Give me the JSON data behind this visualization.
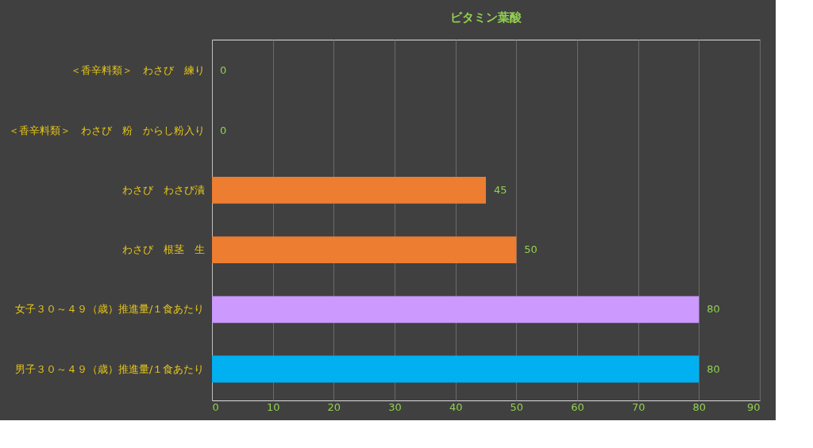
{
  "chart_data": {
    "type": "bar",
    "orientation": "horizontal",
    "title": "ビタミン葉酸",
    "categories": [
      "＜香辛料類＞　わさび　練り",
      "＜香辛料類＞　わさび　粉　からし粉入り",
      "わさび　わさび漬",
      "わさび　根茎　生",
      "女子３０～４９（歳）推進量/１食あたり",
      "男子３０～４９（歳）推進量/１食あたり"
    ],
    "values": [
      0,
      0,
      45,
      50,
      80,
      80
    ],
    "colors": [
      "#ed7d31",
      "#ed7d31",
      "#ed7d31",
      "#ed7d31",
      "#cc99ff",
      "#00b0f0"
    ],
    "xlim": [
      0,
      90
    ],
    "xticks": [
      0,
      10,
      20,
      30,
      40,
      50,
      60,
      70,
      80,
      90
    ],
    "grid": "x",
    "data_labels": true
  }
}
